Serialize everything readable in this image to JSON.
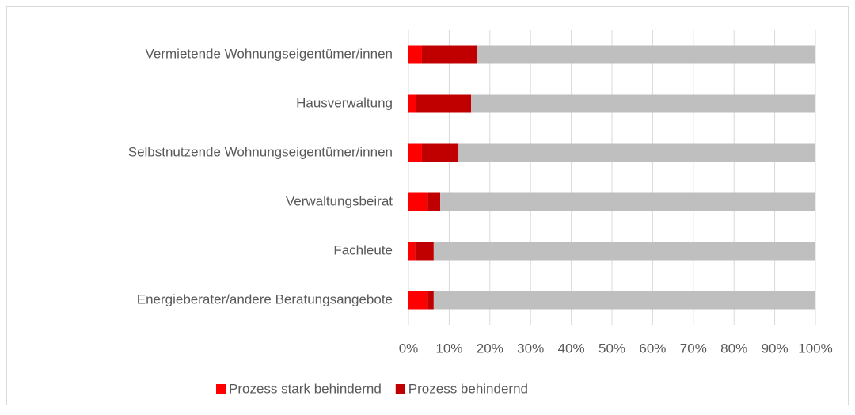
{
  "chart_data": {
    "type": "stacked-bar-horizontal",
    "categories": [
      "Vermietende Wohnungseigentümer/innen",
      "Hausverwaltung",
      "Selbstnutzende Wohnungseigentümer/innen",
      "Verwaltungsbeirat",
      "Fachleute",
      "Energieberater/andere Beratungsangebote"
    ],
    "series": [
      {
        "name": "Prozess stark behindernd",
        "color": "#ff0000",
        "values": [
          3.3,
          1.8,
          3.3,
          4.7,
          1.6,
          4.7
        ]
      },
      {
        "name": "Prozess behindernd",
        "color": "#c00000",
        "values": [
          13.6,
          13.6,
          9,
          3.1,
          4.6,
          1.5
        ]
      },
      {
        "color": "#bfbfbf",
        "values": [
          83.1,
          84.6,
          87.7,
          92.2,
          93.8,
          93.8
        ]
      }
    ],
    "xlim": [
      0,
      100
    ],
    "xticks": [
      {
        "value": 0,
        "label": "0%"
      },
      {
        "value": 10,
        "label": "10%"
      },
      {
        "value": 20,
        "label": "20%"
      },
      {
        "value": 30,
        "label": "30%"
      },
      {
        "value": 40,
        "label": "40%"
      },
      {
        "value": 50,
        "label": "50%"
      },
      {
        "value": 60,
        "label": "60%"
      },
      {
        "value": 70,
        "label": "70%"
      },
      {
        "value": 80,
        "label": "80%"
      },
      {
        "value": 90,
        "label": "90%"
      },
      {
        "value": 100,
        "label": "100%"
      }
    ],
    "grid": true,
    "legend": "bottom"
  }
}
